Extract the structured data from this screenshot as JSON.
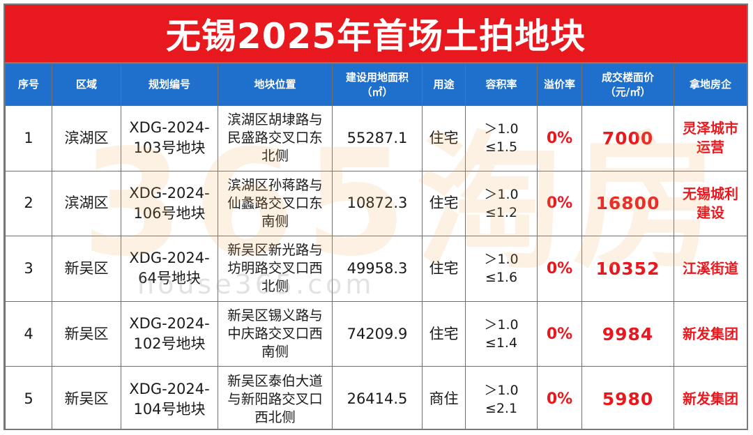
{
  "title": "无锡2025年首场土拍地块",
  "watermark": {
    "logo_text": "365淘房",
    "url_text": "house365.com"
  },
  "columns": [
    {
      "label": "序号"
    },
    {
      "label": "区域"
    },
    {
      "label": "规划编号"
    },
    {
      "label": "地块位置"
    },
    {
      "label": "建设用地面积",
      "sub": "（㎡）"
    },
    {
      "label": "用途"
    },
    {
      "label": "容积率"
    },
    {
      "label": "溢价率"
    },
    {
      "label": "成交楼面价",
      "sub": "（元/㎡）"
    },
    {
      "label": "拿地房企"
    }
  ],
  "rows": [
    {
      "no": "1",
      "district": "滨湖区",
      "plan_no": "XDG-2024-103号地块",
      "location": "滨湖区胡埭路与民盛路交叉口东北侧",
      "area": "55287.1",
      "use": "住宅",
      "far_min": "＞1.0",
      "far_max": "≤1.5",
      "premium": "0%",
      "price": "7000",
      "buyer": "灵泽城市运营"
    },
    {
      "no": "2",
      "district": "滨湖区",
      "plan_no": "XDG-2024-106号地块",
      "location": "滨湖区孙蒋路与仙蠡路交叉口东南侧",
      "area": "10872.3",
      "use": "住宅",
      "far_min": "＞1.0",
      "far_max": "≤1.2",
      "premium": "0%",
      "price": "16800",
      "buyer": "无锡城利建设"
    },
    {
      "no": "3",
      "district": "新吴区",
      "plan_no": "XDG-2024-64号地块",
      "location": "新吴区新光路与坊明路交叉口西北侧",
      "area": "49958.3",
      "use": "住宅",
      "far_min": "＞1.0",
      "far_max": "≤1.6",
      "premium": "0%",
      "price": "10352",
      "buyer": "江溪街道"
    },
    {
      "no": "4",
      "district": "新吴区",
      "plan_no": "XDG-2024-102号地块",
      "location": "新吴区锡义路与中庆路交叉口西南侧",
      "area": "74209.9",
      "use": "住宅",
      "far_min": "＞1.0",
      "far_max": "≤1.4",
      "premium": "0%",
      "price": "9984",
      "buyer": "新发集团"
    },
    {
      "no": "5",
      "district": "新吴区",
      "plan_no": "XDG-2024-104号地块",
      "location": "新吴区泰伯大道与新阳路交叉口西北侧",
      "area": "26414.5",
      "use": "商住",
      "far_min": "＞1.0",
      "far_max": "≤2.1",
      "premium": "0%",
      "price": "5980",
      "buyer": "新发集团"
    }
  ]
}
